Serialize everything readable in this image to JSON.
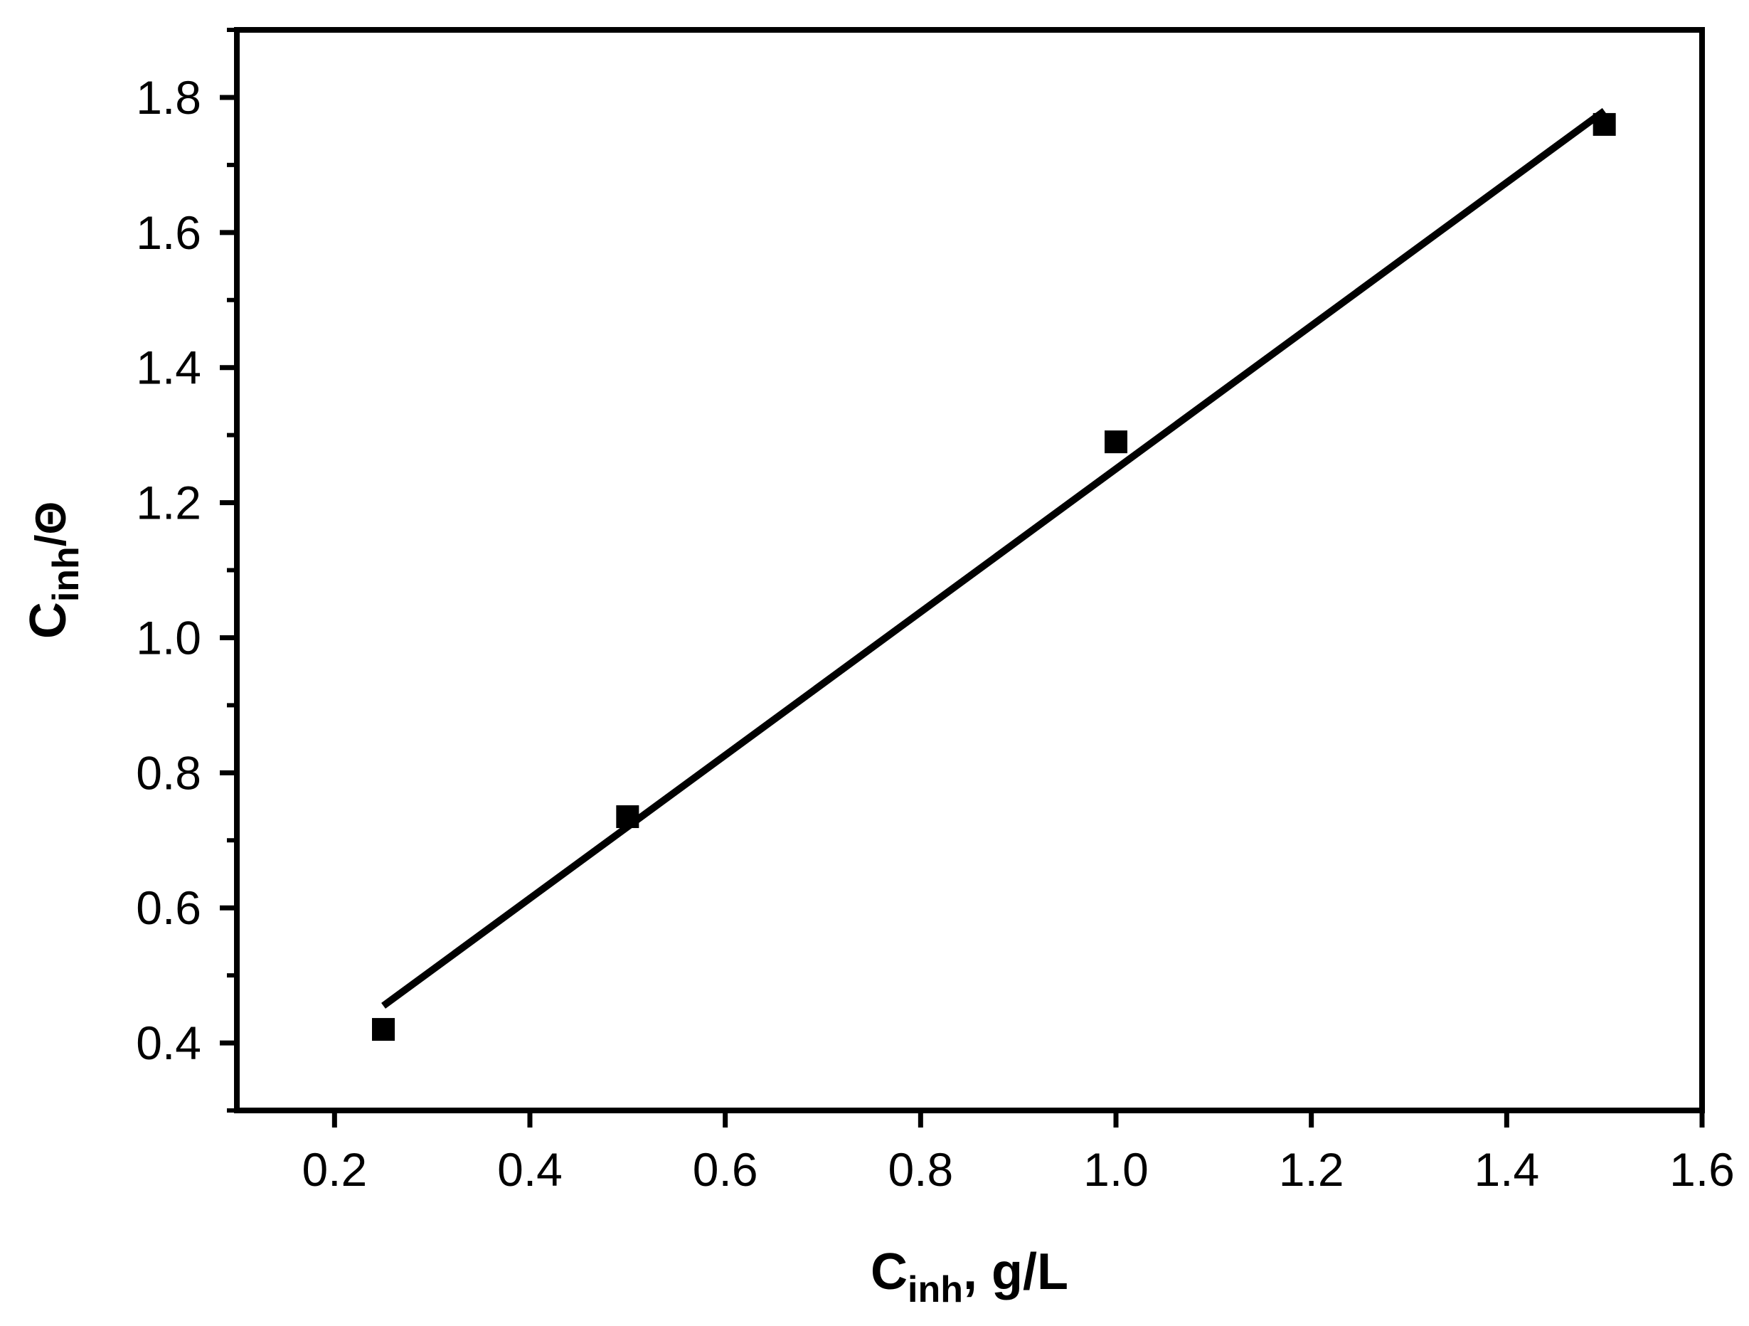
{
  "chart_data": {
    "type": "scatter",
    "title": "",
    "xlabel": {
      "main": "C",
      "sub": "inh",
      "rest": ", g/L"
    },
    "ylabel": {
      "main": "C",
      "sub": "inh",
      "rest": "/Θ"
    },
    "xlim": [
      0.1,
      1.6
    ],
    "ylim": [
      0.3,
      1.9
    ],
    "x_ticks": [
      0.2,
      0.4,
      0.6,
      0.8,
      1.0,
      1.2,
      1.4,
      1.6
    ],
    "x_tick_labels": [
      "0.2",
      "0.4",
      "0.6",
      "0.8",
      "1.0",
      "1.2",
      "1.4",
      "1.6"
    ],
    "y_ticks": [
      0.4,
      0.6,
      0.8,
      1.0,
      1.2,
      1.4,
      1.6,
      1.8
    ],
    "y_tick_labels": [
      "0.4",
      "0.6",
      "0.8",
      "1.0",
      "1.2",
      "1.4",
      "1.6",
      "1.8"
    ],
    "grid": false,
    "legend": "none",
    "series": [
      {
        "marker": "square",
        "color": "#000000",
        "x": [
          0.25,
          0.5,
          1.0,
          1.5
        ],
        "y": [
          0.42,
          0.735,
          1.29,
          1.76
        ]
      }
    ],
    "fit_line": {
      "color": "#000000",
      "x": [
        0.25,
        1.5
      ],
      "y": [
        0.455,
        1.78
      ]
    }
  }
}
